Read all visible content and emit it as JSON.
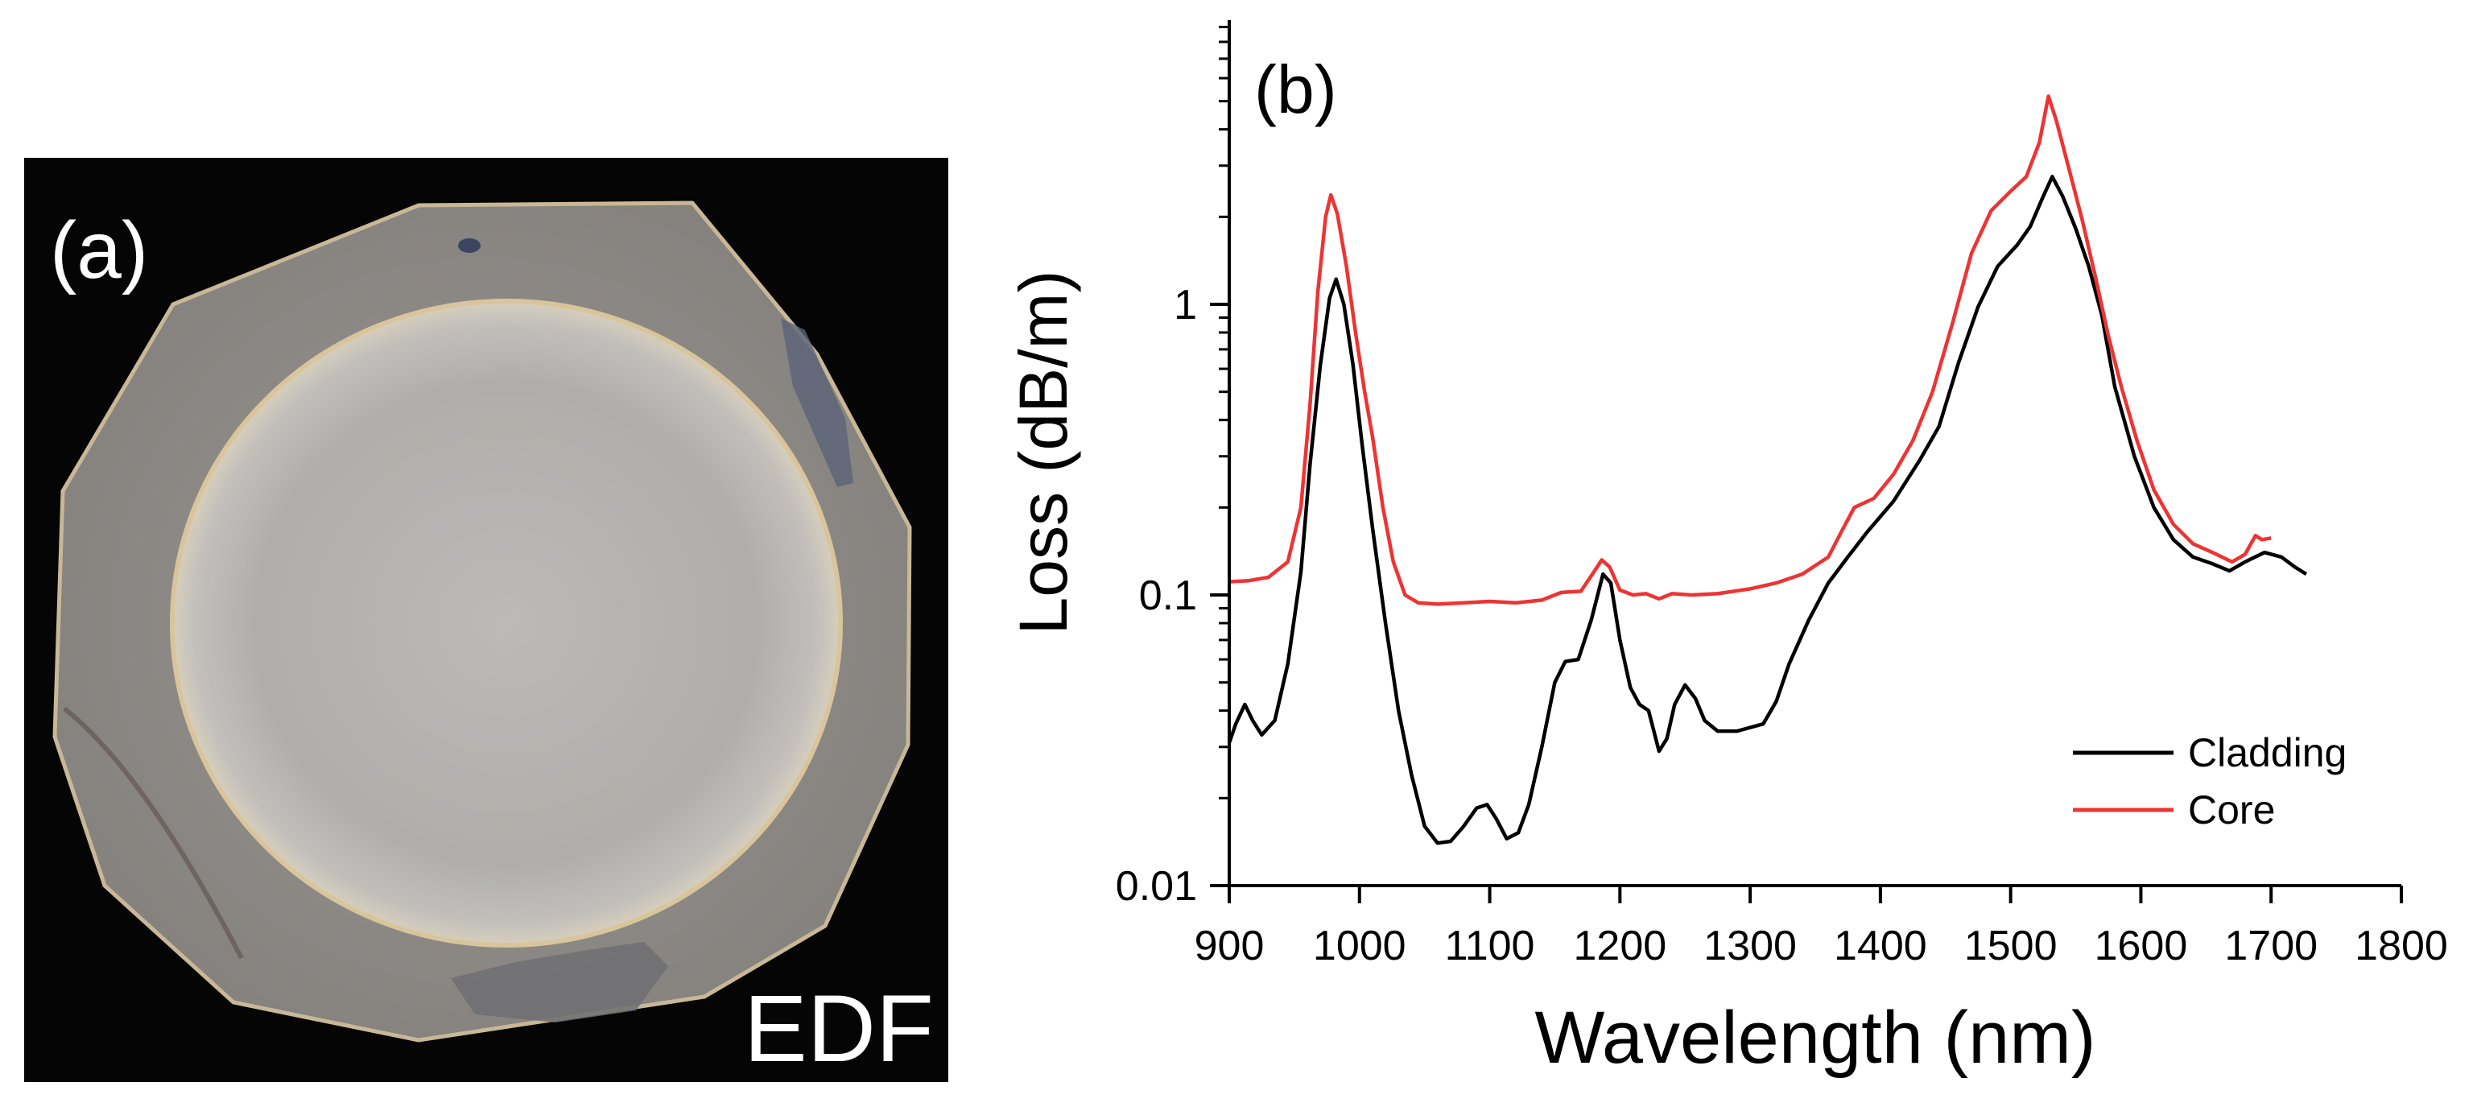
{
  "panel_a": {
    "label": "(a)",
    "annotation": "EDF",
    "description_colors": {
      "background": "#050505",
      "cladding": "#8f8c88",
      "core": "#b5b3b1",
      "ring": "#d9c9a8"
    }
  },
  "chart_data": {
    "type": "line",
    "panel_label": "(b)",
    "xlabel": "Wavelength (nm)",
    "ylabel": "Loss (dB/m)",
    "xlim": [
      900,
      1800
    ],
    "ylim": [
      0.01,
      10
    ],
    "yscale": "log",
    "xticks": [
      900,
      1000,
      1100,
      1200,
      1300,
      1400,
      1500,
      1600,
      1700,
      1800
    ],
    "yticks": [
      {
        "value": 0.01,
        "label": "0.01"
      },
      {
        "value": 0.1,
        "label": "0.1"
      },
      {
        "value": 1,
        "label": "1"
      }
    ],
    "legend_position": "bottom-right",
    "grid": false,
    "series": [
      {
        "name": "Cladding",
        "color": "#000000",
        "points": [
          [
            900,
            0.031
          ],
          [
            905,
            0.036
          ],
          [
            912,
            0.042
          ],
          [
            918,
            0.037
          ],
          [
            925,
            0.033
          ],
          [
            935,
            0.037
          ],
          [
            945,
            0.058
          ],
          [
            955,
            0.12
          ],
          [
            962,
            0.28
          ],
          [
            970,
            0.62
          ],
          [
            977,
            1.05
          ],
          [
            982,
            1.22
          ],
          [
            988,
            1.0
          ],
          [
            995,
            0.62
          ],
          [
            1002,
            0.33
          ],
          [
            1010,
            0.17
          ],
          [
            1020,
            0.08
          ],
          [
            1030,
            0.04
          ],
          [
            1040,
            0.024
          ],
          [
            1050,
            0.016
          ],
          [
            1060,
            0.014
          ],
          [
            1070,
            0.0142
          ],
          [
            1080,
            0.016
          ],
          [
            1090,
            0.0185
          ],
          [
            1098,
            0.019
          ],
          [
            1105,
            0.017
          ],
          [
            1113,
            0.0145
          ],
          [
            1122,
            0.0152
          ],
          [
            1130,
            0.019
          ],
          [
            1140,
            0.03
          ],
          [
            1150,
            0.05
          ],
          [
            1158,
            0.059
          ],
          [
            1168,
            0.06
          ],
          [
            1178,
            0.082
          ],
          [
            1187,
            0.118
          ],
          [
            1193,
            0.11
          ],
          [
            1200,
            0.07
          ],
          [
            1208,
            0.048
          ],
          [
            1215,
            0.042
          ],
          [
            1222,
            0.04
          ],
          [
            1230,
            0.029
          ],
          [
            1236,
            0.032
          ],
          [
            1242,
            0.042
          ],
          [
            1250,
            0.049
          ],
          [
            1258,
            0.044
          ],
          [
            1265,
            0.037
          ],
          [
            1275,
            0.034
          ],
          [
            1290,
            0.034
          ],
          [
            1310,
            0.036
          ],
          [
            1320,
            0.043
          ],
          [
            1330,
            0.058
          ],
          [
            1345,
            0.082
          ],
          [
            1360,
            0.11
          ],
          [
            1375,
            0.135
          ],
          [
            1390,
            0.165
          ],
          [
            1410,
            0.21
          ],
          [
            1430,
            0.29
          ],
          [
            1445,
            0.38
          ],
          [
            1460,
            0.63
          ],
          [
            1475,
            0.98
          ],
          [
            1490,
            1.35
          ],
          [
            1505,
            1.6
          ],
          [
            1515,
            1.85
          ],
          [
            1525,
            2.35
          ],
          [
            1532,
            2.75
          ],
          [
            1540,
            2.35
          ],
          [
            1550,
            1.82
          ],
          [
            1560,
            1.35
          ],
          [
            1570,
            0.92
          ],
          [
            1580,
            0.52
          ],
          [
            1595,
            0.3
          ],
          [
            1610,
            0.2
          ],
          [
            1625,
            0.155
          ],
          [
            1640,
            0.135
          ],
          [
            1655,
            0.128
          ],
          [
            1668,
            0.121
          ],
          [
            1680,
            0.13
          ],
          [
            1695,
            0.14
          ],
          [
            1708,
            0.135
          ],
          [
            1718,
            0.125
          ],
          [
            1727,
            0.118
          ]
        ]
      },
      {
        "name": "Core",
        "color": "#ee3333",
        "points": [
          [
            900,
            0.111
          ],
          [
            915,
            0.112
          ],
          [
            930,
            0.115
          ],
          [
            945,
            0.13
          ],
          [
            955,
            0.2
          ],
          [
            962,
            0.45
          ],
          [
            968,
            1.1
          ],
          [
            974,
            2.0
          ],
          [
            978,
            2.38
          ],
          [
            983,
            2.05
          ],
          [
            990,
            1.35
          ],
          [
            997,
            0.8
          ],
          [
            1004,
            0.5
          ],
          [
            1010,
            0.35
          ],
          [
            1018,
            0.2
          ],
          [
            1026,
            0.13
          ],
          [
            1035,
            0.1
          ],
          [
            1045,
            0.094
          ],
          [
            1060,
            0.093
          ],
          [
            1080,
            0.094
          ],
          [
            1100,
            0.095
          ],
          [
            1120,
            0.094
          ],
          [
            1140,
            0.096
          ],
          [
            1155,
            0.102
          ],
          [
            1170,
            0.103
          ],
          [
            1180,
            0.12
          ],
          [
            1186,
            0.132
          ],
          [
            1192,
            0.125
          ],
          [
            1200,
            0.104
          ],
          [
            1210,
            0.1
          ],
          [
            1220,
            0.101
          ],
          [
            1230,
            0.097
          ],
          [
            1240,
            0.101
          ],
          [
            1255,
            0.1
          ],
          [
            1275,
            0.101
          ],
          [
            1300,
            0.105
          ],
          [
            1320,
            0.11
          ],
          [
            1340,
            0.118
          ],
          [
            1360,
            0.135
          ],
          [
            1370,
            0.165
          ],
          [
            1380,
            0.2
          ],
          [
            1395,
            0.215
          ],
          [
            1410,
            0.26
          ],
          [
            1425,
            0.34
          ],
          [
            1440,
            0.5
          ],
          [
            1455,
            0.85
          ],
          [
            1470,
            1.5
          ],
          [
            1485,
            2.1
          ],
          [
            1500,
            2.45
          ],
          [
            1512,
            2.75
          ],
          [
            1522,
            3.6
          ],
          [
            1529,
            5.2
          ],
          [
            1535,
            4.3
          ],
          [
            1545,
            2.9
          ],
          [
            1555,
            1.95
          ],
          [
            1565,
            1.25
          ],
          [
            1575,
            0.78
          ],
          [
            1585,
            0.52
          ],
          [
            1597,
            0.34
          ],
          [
            1610,
            0.23
          ],
          [
            1625,
            0.175
          ],
          [
            1640,
            0.15
          ],
          [
            1655,
            0.14
          ],
          [
            1670,
            0.13
          ],
          [
            1680,
            0.138
          ],
          [
            1688,
            0.16
          ],
          [
            1693,
            0.155
          ],
          [
            1700,
            0.157
          ]
        ]
      }
    ]
  }
}
